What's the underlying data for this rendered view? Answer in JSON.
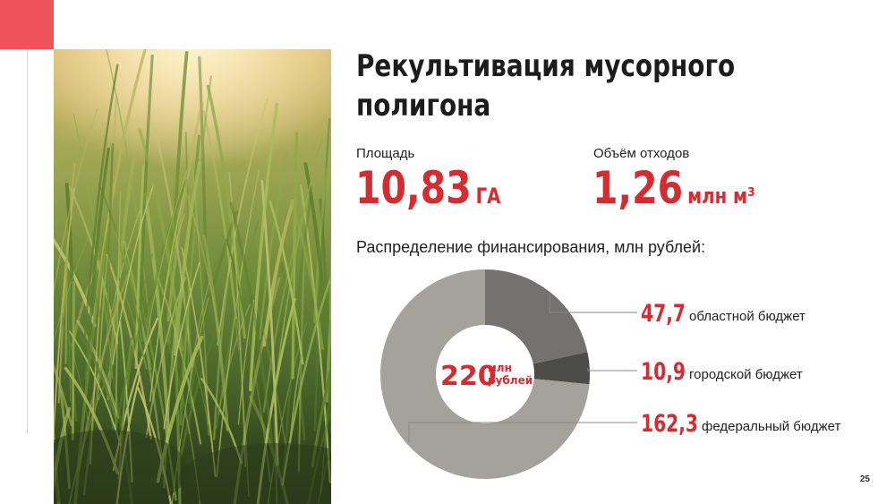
{
  "slide": {
    "title": "Рекультивация мусорного полигона",
    "page_number": "25"
  },
  "stats": {
    "area": {
      "label": "Площадь",
      "value": "10,83",
      "unit": "ГА"
    },
    "volume": {
      "label": "Объём отходов",
      "value": "1,26",
      "unit": "млн м³"
    }
  },
  "funding": {
    "label": "Распределение финансирования, млн рублей:",
    "total_value": "220",
    "total_unit_line1": "млн",
    "total_unit_line2": "рублей"
  },
  "chart_data": {
    "type": "pie",
    "title": "Распределение финансирования, млн рублей:",
    "donut": true,
    "categories": [
      "областной бюджет",
      "городской бюджет",
      "федеральный бюджет"
    ],
    "values": [
      47.7,
      10.9,
      162.3
    ],
    "value_labels": [
      "47,7",
      "10,9",
      "162,3"
    ],
    "colors": [
      "#74726f",
      "#4b4c48",
      "#a5a19d"
    ],
    "total": 220
  },
  "colors": {
    "accent": "#f0525a",
    "highlight_red": "#d32d34"
  }
}
